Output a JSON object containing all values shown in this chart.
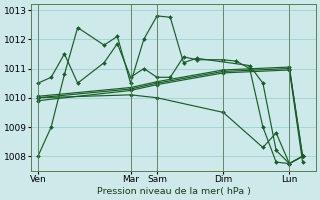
{
  "title": "Pression niveau de la mer( hPa )",
  "background_color": "#cde9ea",
  "grid_color": "#a8d4d5",
  "line_color": "#1a5c28",
  "ylim": [
    1007.5,
    1013.2
  ],
  "yticks": [
    1008,
    1009,
    1010,
    1011,
    1012,
    1013
  ],
  "day_labels": [
    "Ven",
    "Mar",
    "Sam",
    "Dim",
    "Lun"
  ],
  "day_tick_positions": [
    0,
    7,
    9,
    14,
    19
  ],
  "xlim": [
    -0.5,
    21
  ],
  "vline_positions": [
    0,
    7,
    9,
    14,
    19
  ],
  "lines": [
    {
      "x": [
        0,
        1,
        2,
        3,
        5,
        6,
        7,
        8,
        9,
        10,
        11,
        12,
        16,
        17,
        18,
        19,
        20
      ],
      "y": [
        1008.0,
        1009.0,
        1010.8,
        1012.4,
        1011.8,
        1012.1,
        1010.5,
        1012.0,
        1012.8,
        1012.75,
        1011.2,
        1011.35,
        1011.1,
        1010.5,
        1008.2,
        1007.75,
        1008.0
      ]
    },
    {
      "x": [
        0,
        1,
        2,
        3,
        5,
        6,
        7,
        8,
        9,
        10,
        11,
        12,
        14,
        15,
        16,
        17,
        18,
        19,
        20
      ],
      "y": [
        1010.5,
        1010.7,
        1011.5,
        1010.5,
        1011.2,
        1011.85,
        1010.7,
        1011.0,
        1010.7,
        1010.7,
        1011.4,
        1011.3,
        1011.3,
        1011.25,
        1011.0,
        1009.0,
        1007.8,
        1007.75,
        1008.0
      ]
    },
    {
      "x": [
        0,
        7,
        9,
        14,
        19,
        20
      ],
      "y": [
        1010.0,
        1010.3,
        1010.5,
        1010.9,
        1011.0,
        1008.0
      ]
    },
    {
      "x": [
        0,
        7,
        9,
        14,
        19,
        20
      ],
      "y": [
        1010.05,
        1010.35,
        1010.55,
        1010.95,
        1011.05,
        1008.0
      ]
    },
    {
      "x": [
        0,
        7,
        9,
        14,
        19,
        20
      ],
      "y": [
        1009.9,
        1010.25,
        1010.45,
        1010.85,
        1010.95,
        1007.8
      ]
    },
    {
      "x": [
        0,
        7,
        9,
        14,
        17,
        18,
        19,
        20
      ],
      "y": [
        1010.0,
        1010.1,
        1010.0,
        1009.5,
        1008.3,
        1008.8,
        1007.75,
        1008.0
      ]
    }
  ]
}
